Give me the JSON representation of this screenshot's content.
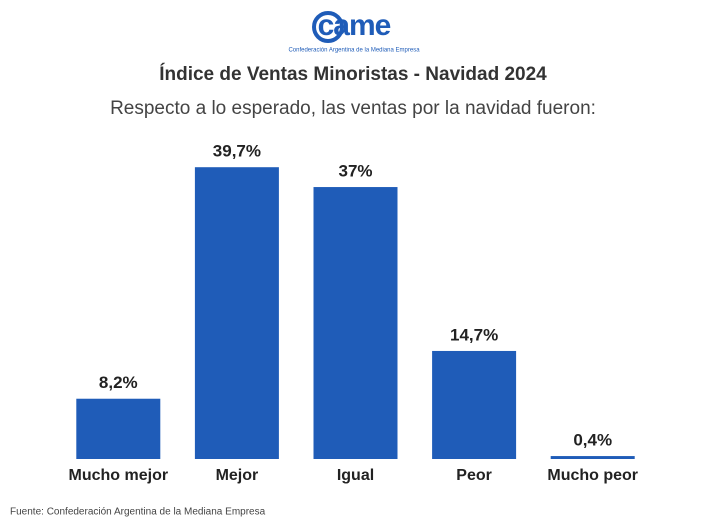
{
  "logo": {
    "text": "came",
    "subtitle": "Confederación Argentina de la Mediana Empresa"
  },
  "chart_data": {
    "type": "bar",
    "title": "Índice de Ventas Minoristas - Navidad 2024",
    "subtitle": "Respecto a lo esperado, las ventas por la navidad fueron:",
    "categories": [
      "Mucho mejor",
      "Mejor",
      "Igual",
      "Peor",
      "Mucho peor"
    ],
    "values": [
      8.2,
      39.7,
      37,
      14.7,
      0.4
    ],
    "value_labels": [
      "8,2%",
      "39,7%",
      "37%",
      "14,7%",
      "0,4%"
    ],
    "color": "#1f5cb8",
    "ylim": [
      0,
      40
    ],
    "source": "Fuente: Confederación Argentina de la Mediana Empresa"
  }
}
